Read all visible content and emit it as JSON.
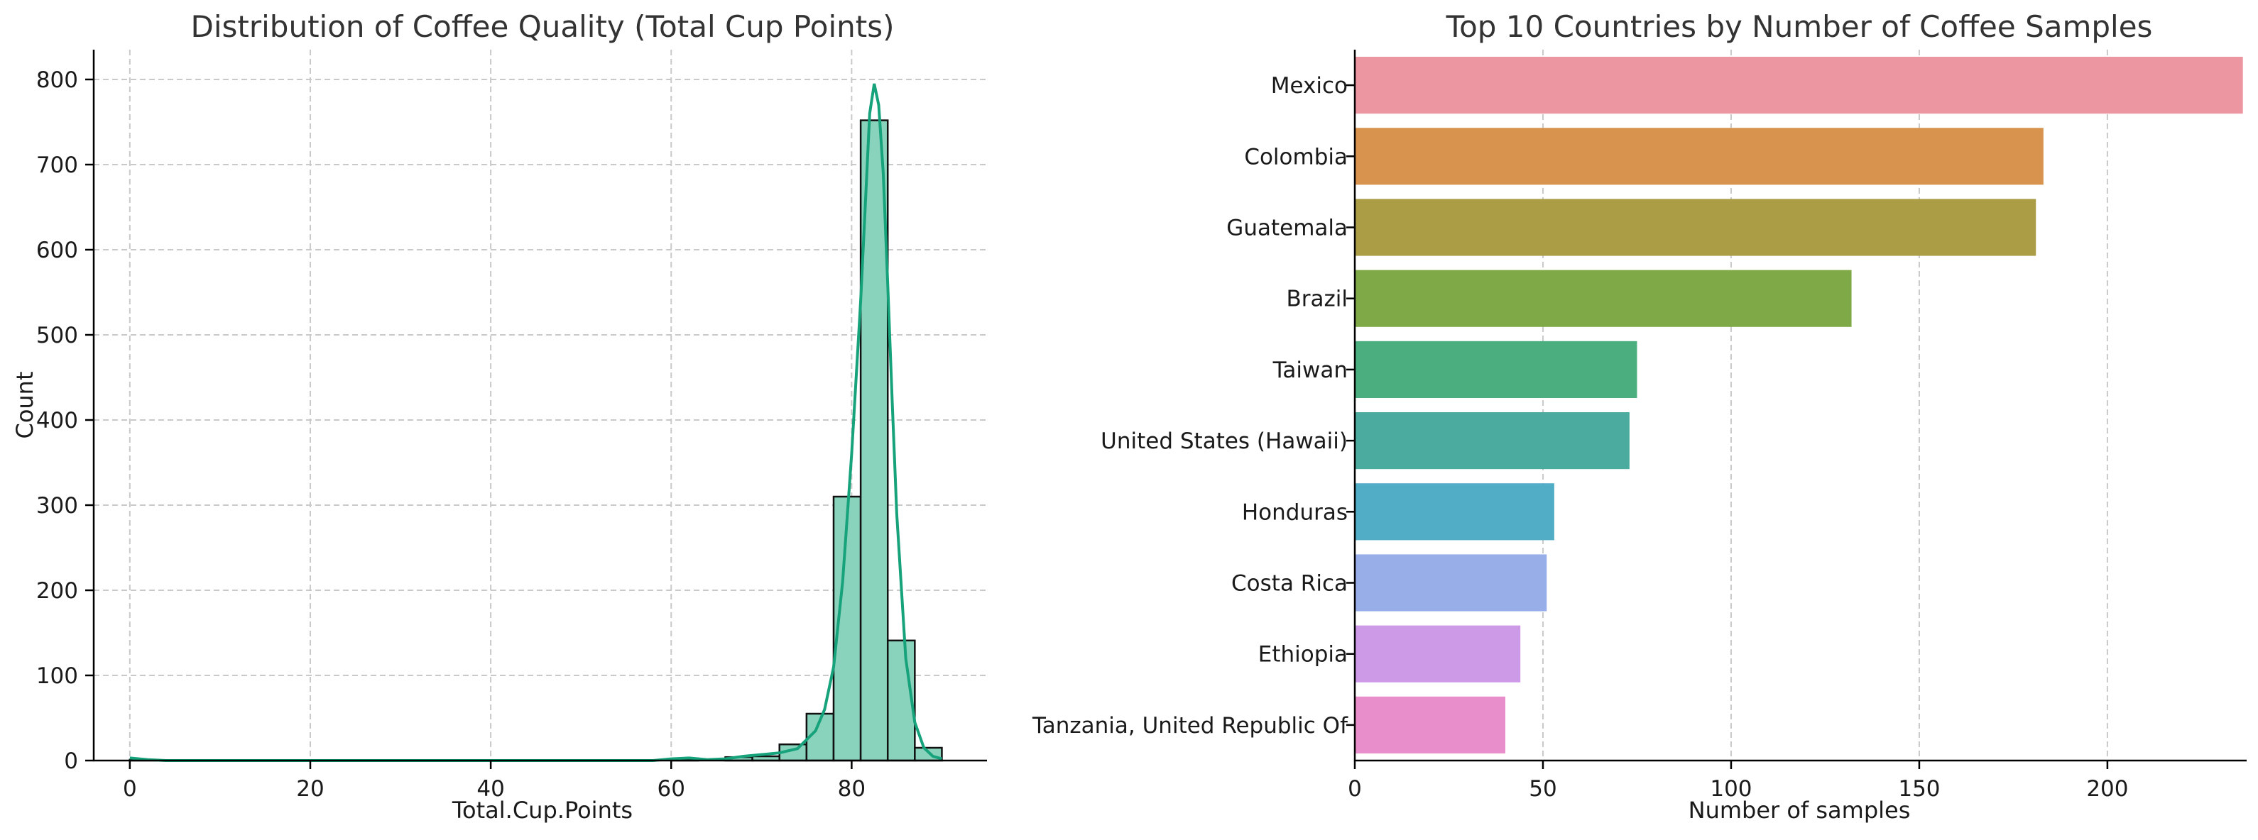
{
  "chart_data": [
    {
      "type": "histogram",
      "title": "Distribution of Coffee Quality (Total Cup Points)",
      "xlabel": "Total.Cup.Points",
      "ylabel": "Count",
      "xlim": [
        -4,
        95
      ],
      "ylim": [
        0,
        835
      ],
      "xticks": [
        0,
        20,
        40,
        60,
        80
      ],
      "yticks": [
        0,
        100,
        200,
        300,
        400,
        500,
        600,
        700,
        800
      ],
      "grid": true,
      "bin_width": 3,
      "bins": [
        {
          "start": 0,
          "end": 3,
          "count": 1
        },
        {
          "start": 3,
          "end": 6,
          "count": 0
        },
        {
          "start": 6,
          "end": 9,
          "count": 0
        },
        {
          "start": 9,
          "end": 12,
          "count": 0
        },
        {
          "start": 12,
          "end": 15,
          "count": 0
        },
        {
          "start": 15,
          "end": 18,
          "count": 0
        },
        {
          "start": 18,
          "end": 21,
          "count": 0
        },
        {
          "start": 21,
          "end": 24,
          "count": 0
        },
        {
          "start": 24,
          "end": 27,
          "count": 0
        },
        {
          "start": 27,
          "end": 30,
          "count": 0
        },
        {
          "start": 30,
          "end": 33,
          "count": 0
        },
        {
          "start": 33,
          "end": 36,
          "count": 0
        },
        {
          "start": 36,
          "end": 39,
          "count": 0
        },
        {
          "start": 39,
          "end": 42,
          "count": 0
        },
        {
          "start": 42,
          "end": 45,
          "count": 0
        },
        {
          "start": 45,
          "end": 48,
          "count": 0
        },
        {
          "start": 48,
          "end": 51,
          "count": 0
        },
        {
          "start": 51,
          "end": 54,
          "count": 0
        },
        {
          "start": 54,
          "end": 57,
          "count": 0
        },
        {
          "start": 57,
          "end": 60,
          "count": 0
        },
        {
          "start": 60,
          "end": 63,
          "count": 1
        },
        {
          "start": 63,
          "end": 66,
          "count": 0
        },
        {
          "start": 66,
          "end": 69,
          "count": 4
        },
        {
          "start": 69,
          "end": 72,
          "count": 5
        },
        {
          "start": 72,
          "end": 75,
          "count": 19
        },
        {
          "start": 75,
          "end": 78,
          "count": 55
        },
        {
          "start": 78,
          "end": 81,
          "count": 310
        },
        {
          "start": 81,
          "end": 84,
          "count": 752
        },
        {
          "start": 84,
          "end": 87,
          "count": 141
        },
        {
          "start": 87,
          "end": 90,
          "count": 15
        }
      ],
      "kde": {
        "x": [
          0,
          2,
          4,
          10,
          30,
          50,
          58,
          60,
          62,
          64,
          66,
          68,
          70,
          72,
          74,
          76,
          77,
          78,
          79,
          80,
          81,
          81.5,
          82,
          82.5,
          83,
          83.5,
          84,
          84.5,
          85,
          86,
          87,
          88,
          89,
          90
        ],
        "y": [
          3,
          1,
          0,
          0,
          0,
          0,
          0,
          2,
          3,
          1,
          2,
          5,
          7,
          9,
          14,
          35,
          60,
          110,
          210,
          360,
          540,
          650,
          760,
          795,
          770,
          690,
          560,
          420,
          290,
          120,
          45,
          15,
          5,
          2
        ]
      },
      "colors": {
        "bar_fill": "#89d2bb",
        "bar_edge": "#111111",
        "kde_line": "#16a27b"
      }
    },
    {
      "type": "bar",
      "orientation": "horizontal",
      "title": "Top 10 Countries by Number of Coffee Samples",
      "xlabel": "Number of samples",
      "ylabel": "",
      "xlim": [
        0,
        237
      ],
      "xticks": [
        0,
        50,
        100,
        150,
        200
      ],
      "grid": true,
      "categories": [
        "Mexico",
        "Colombia",
        "Guatemala",
        "Brazil",
        "Taiwan",
        "United States (Hawaii)",
        "Honduras",
        "Costa Rica",
        "Ethiopia",
        "Tanzania, United Republic Of"
      ],
      "values": [
        236,
        183,
        181,
        132,
        75,
        73,
        53,
        51,
        44,
        40
      ],
      "colors": [
        "#ec96a2",
        "#d8944f",
        "#ab9c46",
        "#7fa947",
        "#4aae7f",
        "#4bab9f",
        "#51acc6",
        "#97aee9",
        "#cd9ae8",
        "#e88fcb"
      ]
    }
  ]
}
